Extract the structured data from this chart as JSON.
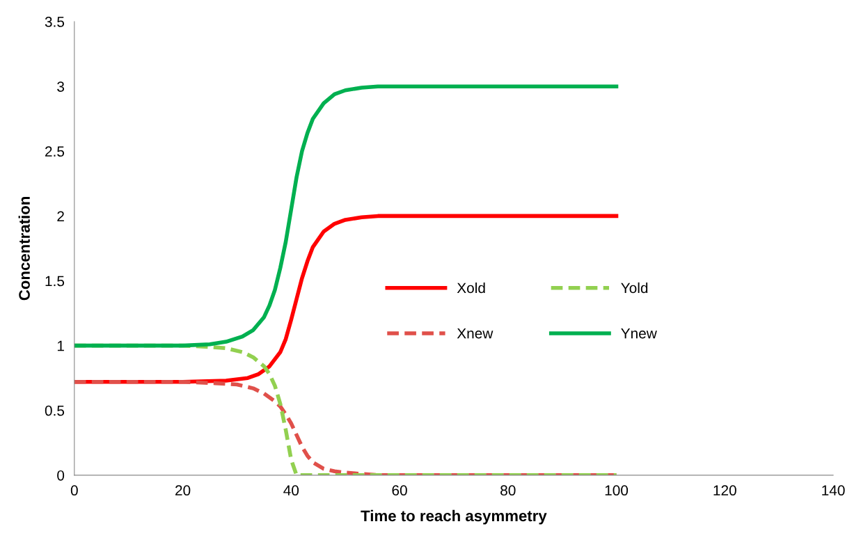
{
  "chart_data": {
    "type": "line",
    "xlabel": "Time to reach asymmetry",
    "ylabel": "Concentration",
    "xlim": [
      0,
      140
    ],
    "xticks": [
      0,
      20,
      40,
      60,
      80,
      100,
      120,
      140
    ],
    "ylim": [
      0,
      3.5
    ],
    "yticks": [
      0,
      0.5,
      1,
      1.5,
      2,
      2.5,
      3,
      3.5
    ],
    "grid": false,
    "legend": "center",
    "marker": "none",
    "series": [
      {
        "name": "Xold",
        "color": "#ff0000",
        "line_style": "solid",
        "x": [
          0,
          20,
          28,
          32,
          34,
          36,
          38,
          39,
          40,
          41,
          42,
          43,
          44,
          46,
          48,
          50,
          53,
          56,
          60,
          70,
          100
        ],
        "values": [
          0.72,
          0.72,
          0.73,
          0.75,
          0.78,
          0.84,
          0.95,
          1.05,
          1.2,
          1.36,
          1.52,
          1.65,
          1.76,
          1.88,
          1.94,
          1.97,
          1.99,
          2,
          2,
          2,
          2
        ]
      },
      {
        "name": "Xnew",
        "color": "#e0504a",
        "line_style": "dashed",
        "x": [
          0,
          20,
          26,
          30,
          33,
          35,
          37,
          38,
          39,
          40,
          41,
          42,
          43,
          44,
          46,
          48,
          50,
          53,
          56,
          60,
          100
        ],
        "values": [
          0.72,
          0.72,
          0.71,
          0.7,
          0.67,
          0.63,
          0.57,
          0.53,
          0.47,
          0.4,
          0.31,
          0.22,
          0.15,
          0.1,
          0.05,
          0.03,
          0.02,
          0.01,
          0,
          0,
          0
        ]
      },
      {
        "name": "Yold",
        "color": "#92d050",
        "line_style": "dashed",
        "x": [
          0,
          20,
          25,
          28,
          31,
          33,
          35,
          36,
          37,
          38,
          39,
          40,
          41,
          45,
          100
        ],
        "values": [
          1,
          1,
          0.99,
          0.98,
          0.95,
          0.91,
          0.84,
          0.78,
          0.69,
          0.55,
          0.35,
          0.12,
          0,
          0,
          0
        ]
      },
      {
        "name": "Ynew",
        "color": "#00b050",
        "line_style": "solid",
        "x": [
          0,
          20,
          25,
          28,
          31,
          33,
          35,
          36,
          37,
          38,
          39,
          40,
          41,
          42,
          43,
          44,
          46,
          48,
          50,
          53,
          56,
          60,
          70,
          100
        ],
        "values": [
          1,
          1,
          1.01,
          1.03,
          1.07,
          1.12,
          1.22,
          1.31,
          1.43,
          1.6,
          1.8,
          2.05,
          2.3,
          2.5,
          2.64,
          2.75,
          2.87,
          2.94,
          2.97,
          2.99,
          3,
          3,
          3,
          3
        ]
      }
    ]
  }
}
